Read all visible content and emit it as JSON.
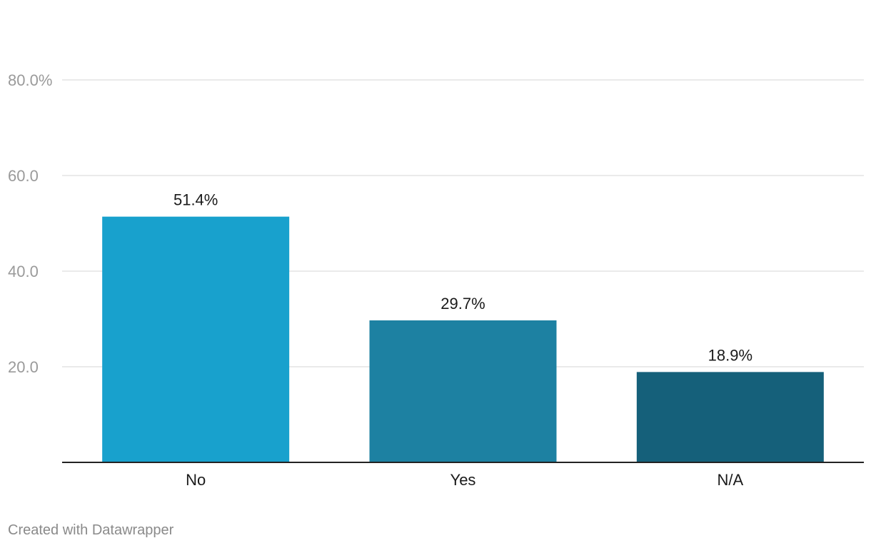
{
  "chart_data": {
    "type": "bar",
    "categories": [
      "No",
      "Yes",
      "N/A"
    ],
    "values": [
      51.4,
      29.7,
      18.9
    ],
    "value_labels": [
      "51.4%",
      "29.7%",
      "18.9%"
    ],
    "colors": [
      "#18a1cd",
      "#1d81a2",
      "#15607a"
    ],
    "y_ticks": [
      20,
      40,
      60,
      80
    ],
    "y_tick_labels": [
      "20.0",
      "40.0",
      "60.0",
      "80.0%"
    ],
    "ylim": [
      0,
      80
    ],
    "grid": true,
    "title": "",
    "xlabel": "",
    "ylabel": ""
  },
  "footer": {
    "credit": "Created with Datawrapper"
  },
  "colors": {
    "gridline": "#dddddd",
    "baseline": "#222222",
    "tick_text": "#9a9a9a",
    "label_text": "#1a1a1a"
  }
}
